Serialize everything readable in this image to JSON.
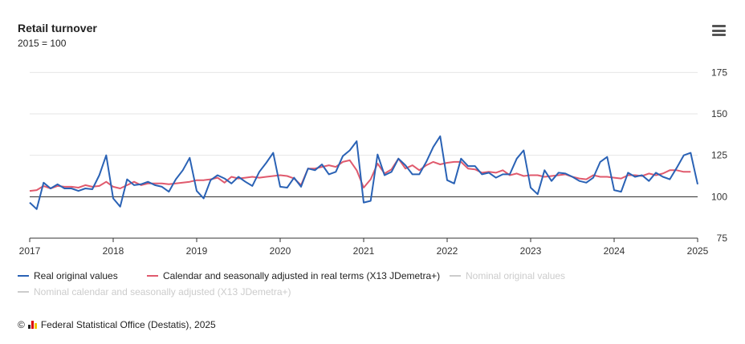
{
  "header": {
    "title": "Retail turnover",
    "subtitle": "2015 = 100"
  },
  "menu": {
    "icon": "hamburger-menu-icon"
  },
  "credits": {
    "copyright": "©",
    "text": "Federal Statistical Office (Destatis), 2025"
  },
  "colors": {
    "real": "#2a62b5",
    "adjusted": "#e05a6d",
    "inactive": "#cccccc",
    "grid": "#e6e6e6",
    "baseline": "#222222"
  },
  "chart_data": {
    "type": "line",
    "x_start": "2017-01",
    "x_end": "2025-01",
    "xticks": [
      "2017",
      "2018",
      "2019",
      "2020",
      "2021",
      "2022",
      "2023",
      "2024",
      "2025"
    ],
    "yticks": [
      "75",
      "100",
      "125",
      "150",
      "175"
    ],
    "ylim": [
      75,
      180
    ],
    "reference_line": 100,
    "grid": true,
    "legend_position": "bottom-left",
    "series": [
      {
        "name": "Real original values",
        "active": true,
        "values": [
          96.5,
          92.5,
          108.5,
          105,
          107.5,
          105,
          105,
          103.5,
          105,
          104.5,
          113,
          125,
          99,
          94,
          110.5,
          107,
          107.5,
          109,
          107,
          106,
          103,
          110.5,
          116,
          123.5,
          103.5,
          99,
          110,
          113,
          111,
          108,
          112,
          109,
          106.5,
          115,
          120.5,
          126.5,
          106,
          105.5,
          111.5,
          106,
          117,
          116,
          119.5,
          113.5,
          115,
          124.5,
          128,
          133.5,
          96.5,
          97.5,
          125.5,
          113,
          115,
          123,
          119,
          113.5,
          113.5,
          121,
          130,
          136.5,
          110,
          108,
          123,
          118.5,
          118.5,
          113.5,
          114.5,
          111.5,
          113.5,
          113.5,
          123,
          128,
          105.5,
          101.5,
          116,
          109.5,
          114.5,
          114,
          112,
          109.5,
          108.5,
          111.5,
          121,
          124,
          104,
          103,
          114.5,
          112,
          113,
          109.5,
          114.5,
          112,
          110.5,
          117.5,
          125,
          126.5,
          107.5
        ]
      },
      {
        "name": "Calendar and seasonally adjusted in real terms (X13 JDemetra+)",
        "active": true,
        "values": [
          103.5,
          104,
          106.5,
          105,
          106.5,
          106,
          106,
          105.5,
          107,
          106,
          106.5,
          109,
          106,
          105,
          107,
          109,
          107,
          108,
          108,
          108,
          107.5,
          108,
          108.5,
          109,
          110,
          110,
          110.5,
          111.5,
          108.5,
          112,
          111,
          111.5,
          112,
          111.5,
          112,
          112.5,
          113,
          112.5,
          111,
          107,
          117,
          117,
          118,
          119,
          118,
          121,
          122,
          116,
          105.5,
          110.5,
          120,
          114,
          116.5,
          123,
          117,
          119,
          116,
          119,
          121,
          119.5,
          120.5,
          121,
          121,
          117,
          116.5,
          114.5,
          115,
          114.5,
          116,
          113,
          114,
          112.5,
          113,
          113,
          112,
          112.5,
          113,
          113.5,
          112,
          111,
          110.5,
          113,
          112,
          112,
          111.5,
          111,
          113,
          113,
          112.5,
          114,
          113,
          114,
          116,
          116,
          115,
          115
        ]
      },
      {
        "name": "Nominal original values",
        "active": false,
        "values": []
      },
      {
        "name": "Nominal calendar and seasonally adjusted (X13 JDemetra+)",
        "active": false,
        "values": []
      }
    ]
  }
}
